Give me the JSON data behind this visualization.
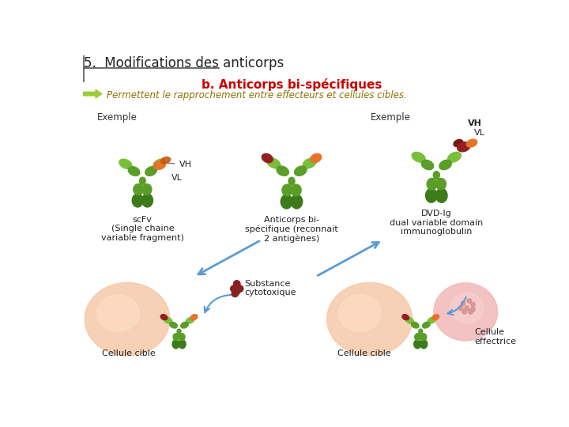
{
  "title": "5.  Modifications des anticorps",
  "subtitle": "b. Anticorps bi-spécifiques",
  "tagline": "Permettent le rapprochement entre effecteurs et cellules cibles.",
  "subtitle_color": "#cc0000",
  "tagline_color": "#8B7000",
  "arrow_color": "#9acd32",
  "title_underline_color": "#555555",
  "label_exemple_left": "Exemple",
  "label_vh": "VH",
  "label_vl": "VL",
  "label_scfv": "scFv\n(Single chaine\nvariable fragment)",
  "label_anticorps_bi": "Anticorps bi-\nspécifique (reconnait\n2 antigènes)",
  "label_dvd": "DVD-Ig\ndual variable domain\nimmunoglobulin",
  "label_exemple_right": "Exemple",
  "label_vh_right": "VH",
  "label_vl_right": "VL",
  "label_substance": "Substance\ncytotoxique",
  "label_cellule_cible_left": "Cellule cible",
  "label_cellule_cible_right": "Cellule cible",
  "label_cellule_effectrice": "Cellule\neffectrice",
  "green_light": "#7abf3a",
  "green_med": "#5a9e28",
  "green_dark": "#3d7a1a",
  "orange_col": "#e8722a",
  "red_dark": "#922020",
  "red_med": "#bb3333",
  "peach": "#f5c9a8",
  "pink_light": "#f2b8b8",
  "blue_arrow": "#5b9bd5",
  "bg": "#ffffff"
}
